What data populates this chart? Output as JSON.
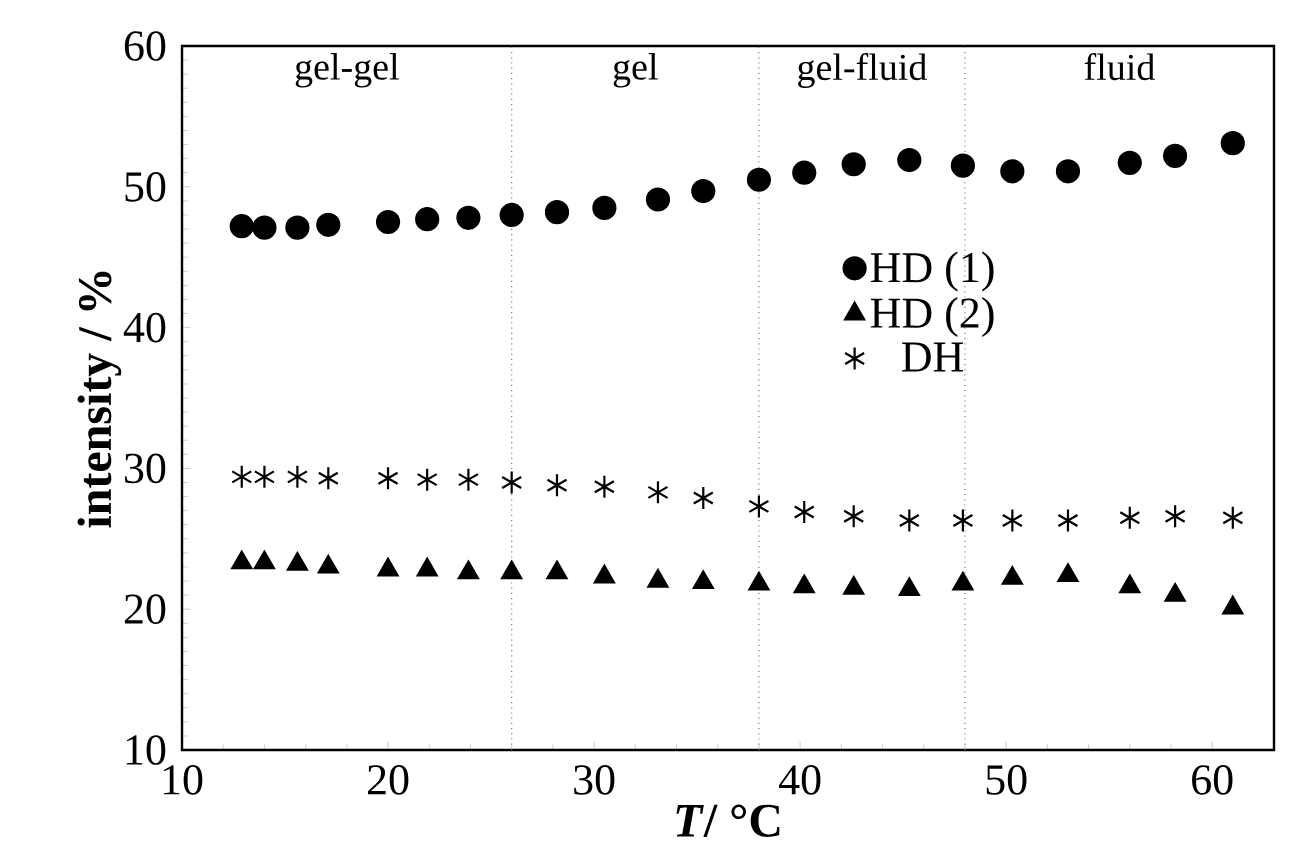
{
  "chart_data": {
    "type": "scatter",
    "xlabel": "*T*/ °C",
    "ylabel": "intensity / %",
    "x": [
      12.9,
      14,
      15.6,
      17.1,
      20,
      21.9,
      23.9,
      26,
      28.2,
      30.5,
      33.1,
      35.3,
      38,
      40.2,
      42.6,
      45.3,
      47.9,
      50.3,
      53,
      56,
      58.2,
      61
    ],
    "series": [
      {
        "name": "HD (1)",
        "color": "#000000",
        "marker": "circle",
        "values": [
          47.2,
          47.1,
          47.1,
          47.3,
          47.5,
          47.7,
          47.8,
          48.0,
          48.2,
          48.5,
          49.1,
          49.7,
          50.5,
          51.0,
          51.6,
          51.9,
          51.5,
          51.1,
          51.1,
          51.7,
          52.2,
          53.1
        ]
      },
      {
        "name": "HD (2)",
        "color": "#000000",
        "marker": "triangle",
        "values": [
          23.3,
          23.3,
          23.2,
          23.0,
          22.8,
          22.8,
          22.6,
          22.6,
          22.6,
          22.3,
          22.0,
          21.9,
          21.8,
          21.6,
          21.5,
          21.4,
          21.8,
          22.2,
          22.4,
          21.6,
          21.0,
          20.1
        ]
      },
      {
        "name": "DH",
        "color": "#000000",
        "marker": "cross",
        "values": [
          29.4,
          29.4,
          29.4,
          29.3,
          29.3,
          29.2,
          29.2,
          29.0,
          28.8,
          28.7,
          28.3,
          27.9,
          27.3,
          26.9,
          26.6,
          26.3,
          26.3,
          26.3,
          26.3,
          26.5,
          26.6,
          26.5
        ]
      }
    ],
    "xlim": [
      10,
      63
    ],
    "ylim": [
      10,
      60
    ],
    "xticks": [
      10,
      20,
      30,
      40,
      50,
      60
    ],
    "yticks": [
      10,
      20,
      30,
      40,
      50,
      60
    ],
    "ref_lines": [
      {
        "axis": "x",
        "value": 26,
        "line_style": "dotted"
      },
      {
        "axis": "x",
        "value": 38,
        "line_style": "dotted"
      },
      {
        "axis": "x",
        "value": 48,
        "line_style": "dotted"
      }
    ],
    "annotations": [
      "gel-gel",
      "gel",
      "gel-fluid",
      "fluid"
    ],
    "legend": "right",
    "grid": false
  }
}
